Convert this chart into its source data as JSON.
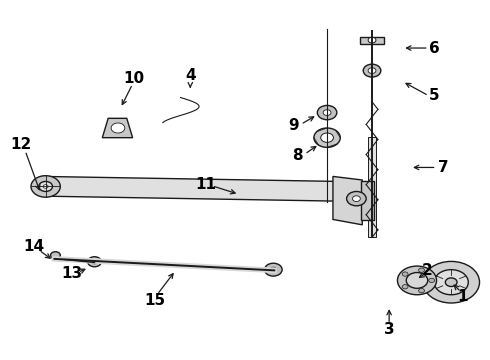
{
  "background_color": "#ffffff",
  "line_color": "#1a1a1a",
  "text_color": "#000000",
  "fig_width": 4.9,
  "fig_height": 3.6,
  "dpi": 100,
  "label_fontsize": 11,
  "label_fontweight": "bold",
  "label_arrow_pairs": {
    "1": {
      "lpos": [
        0.945,
        0.175
      ],
      "aend": [
        0.922,
        0.215
      ],
      "astart": [
        0.942,
        0.188
      ]
    },
    "2": {
      "lpos": [
        0.872,
        0.248
      ],
      "aend": [
        0.85,
        0.222
      ],
      "astart": [
        0.87,
        0.24
      ]
    },
    "3": {
      "lpos": [
        0.795,
        0.082
      ],
      "aend": [
        0.795,
        0.148
      ],
      "astart": [
        0.795,
        0.098
      ]
    },
    "4": {
      "lpos": [
        0.388,
        0.792
      ],
      "aend": [
        0.388,
        0.748
      ],
      "astart": [
        0.388,
        0.768
      ]
    },
    "5": {
      "lpos": [
        0.888,
        0.735
      ],
      "aend": [
        0.822,
        0.775
      ],
      "astart": [
        0.876,
        0.735
      ]
    },
    "6": {
      "lpos": [
        0.888,
        0.868
      ],
      "aend": [
        0.822,
        0.868
      ],
      "astart": [
        0.876,
        0.868
      ]
    },
    "7": {
      "lpos": [
        0.905,
        0.535
      ],
      "aend": [
        0.838,
        0.535
      ],
      "astart": [
        0.892,
        0.535
      ]
    },
    "8": {
      "lpos": [
        0.608,
        0.568
      ],
      "aend": [
        0.652,
        0.6
      ],
      "astart": [
        0.622,
        0.572
      ]
    },
    "9": {
      "lpos": [
        0.6,
        0.652
      ],
      "aend": [
        0.648,
        0.682
      ],
      "astart": [
        0.614,
        0.655
      ]
    },
    "10": {
      "lpos": [
        0.272,
        0.782
      ],
      "aend": [
        0.245,
        0.7
      ],
      "astart": [
        0.27,
        0.768
      ]
    },
    "11": {
      "lpos": [
        0.42,
        0.488
      ],
      "aend": [
        0.488,
        0.46
      ],
      "astart": [
        0.432,
        0.484
      ]
    },
    "12": {
      "lpos": [
        0.042,
        0.598
      ],
      "aend": [
        0.082,
        0.462
      ],
      "astart": [
        0.05,
        0.582
      ]
    },
    "13": {
      "lpos": [
        0.145,
        0.238
      ],
      "aend": [
        0.18,
        0.256
      ],
      "astart": [
        0.158,
        0.242
      ]
    },
    "14": {
      "lpos": [
        0.068,
        0.315
      ],
      "aend": [
        0.108,
        0.275
      ],
      "astart": [
        0.078,
        0.305
      ]
    },
    "15": {
      "lpos": [
        0.315,
        0.165
      ],
      "aend": [
        0.358,
        0.248
      ],
      "astart": [
        0.32,
        0.18
      ]
    }
  }
}
